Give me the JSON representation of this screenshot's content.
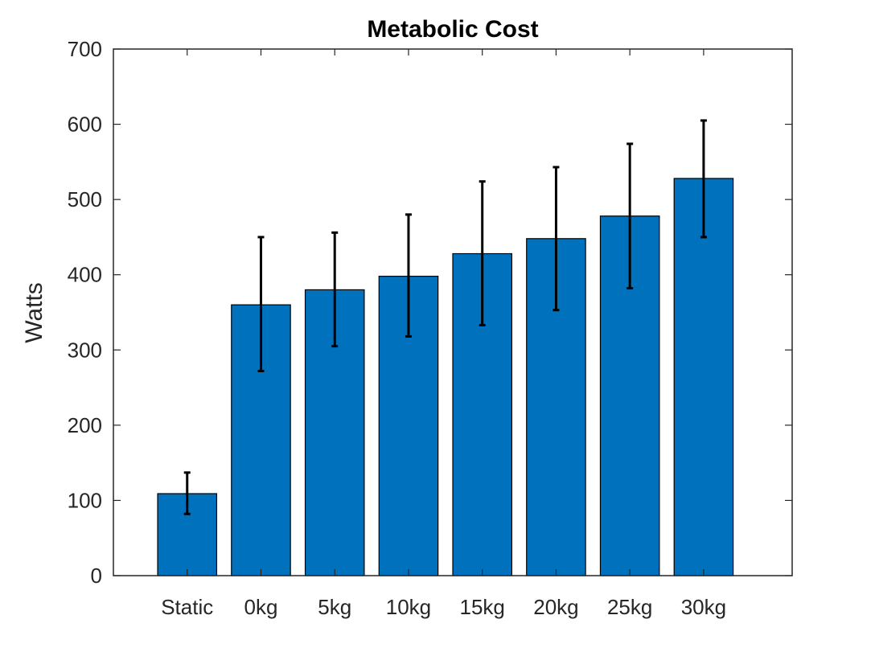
{
  "chart_data": {
    "type": "bar",
    "title": "Metabolic Cost",
    "xlabel": "",
    "ylabel": "Watts",
    "categories": [
      "Static",
      "0kg",
      "5kg",
      "10kg",
      "15kg",
      "20kg",
      "25kg",
      "30kg"
    ],
    "values": [
      109,
      360,
      380,
      398,
      428,
      448,
      478,
      528
    ],
    "error_low": [
      82,
      272,
      305,
      318,
      333,
      353,
      382,
      450
    ],
    "error_high": [
      137,
      450,
      456,
      480,
      524,
      543,
      574,
      605
    ],
    "ylim": [
      0,
      700
    ],
    "xlim": [
      -1,
      8.2
    ],
    "yticks": [
      0,
      100,
      200,
      300,
      400,
      500,
      600,
      700
    ],
    "grid": false,
    "bar_color": "#0072bd",
    "error_color": "#000000",
    "axis_color": "#262626"
  }
}
